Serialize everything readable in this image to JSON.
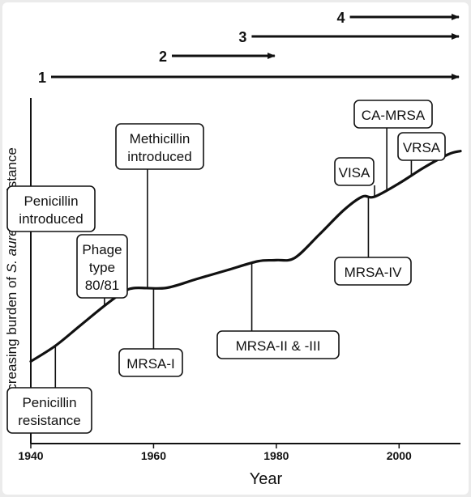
{
  "chart_data": {
    "type": "line",
    "xlabel": "Year",
    "ylabel_parts": [
      "Increasing burden of ",
      "S. aureus",
      " resistance"
    ],
    "xlim": [
      1940,
      2010
    ],
    "ylim": [
      0,
      10
    ],
    "xticks": [
      1940,
      1960,
      1980,
      2000
    ],
    "grid": false,
    "series": [
      {
        "x": [
          1940,
          1944,
          1948,
          1952,
          1955,
          1957,
          1962,
          1967,
          1972,
          1977,
          1980,
          1983,
          1987,
          1991,
          1994,
          1996,
          2000,
          2004,
          2008,
          2010
        ],
        "y": [
          0.6,
          1.3,
          2.2,
          3.1,
          3.7,
          3.9,
          3.9,
          4.3,
          4.7,
          5.1,
          5.15,
          5.25,
          6.3,
          7.4,
          8.0,
          8.0,
          8.6,
          9.3,
          9.9,
          10.05
        ]
      }
    ],
    "waves": [
      {
        "label": "1",
        "start": 1940,
        "end": 2010
      },
      {
        "label": "2",
        "start": 1961,
        "end": 1980
      },
      {
        "label": "3",
        "start": 1974,
        "end": 2010
      },
      {
        "label": "4",
        "start": 1990,
        "end": 2010
      }
    ],
    "annotations": [
      {
        "id": "penicillin-introduced",
        "lines": [
          "Penicillin",
          "introduced"
        ],
        "x": 1940,
        "side": "above"
      },
      {
        "id": "penicillin-resistance",
        "lines": [
          "Penicillin",
          "resistance"
        ],
        "x": 1944,
        "side": "below"
      },
      {
        "id": "phage-type",
        "lines": [
          "Phage",
          "type",
          "80/81"
        ],
        "x": 1952,
        "side": "above"
      },
      {
        "id": "methicillin-introduced",
        "lines": [
          "Methicillin",
          "introduced"
        ],
        "x": 1959,
        "side": "above"
      },
      {
        "id": "mrsa-i",
        "lines": [
          "MRSA-I"
        ],
        "x": 1960,
        "side": "below"
      },
      {
        "id": "mrsa-ii-iii",
        "lines": [
          "MRSA-II & -III"
        ],
        "x": 1976,
        "side": "below"
      },
      {
        "id": "visa",
        "lines": [
          "VISA"
        ],
        "x": 1996,
        "side": "above"
      },
      {
        "id": "mrsa-iv",
        "lines": [
          "MRSA-IV"
        ],
        "x": 1995,
        "side": "below"
      },
      {
        "id": "ca-mrsa",
        "lines": [
          "CA-MRSA"
        ],
        "x": 1998,
        "side": "above"
      },
      {
        "id": "vrsa",
        "lines": [
          "VRSA"
        ],
        "x": 2002,
        "side": "above"
      }
    ]
  }
}
